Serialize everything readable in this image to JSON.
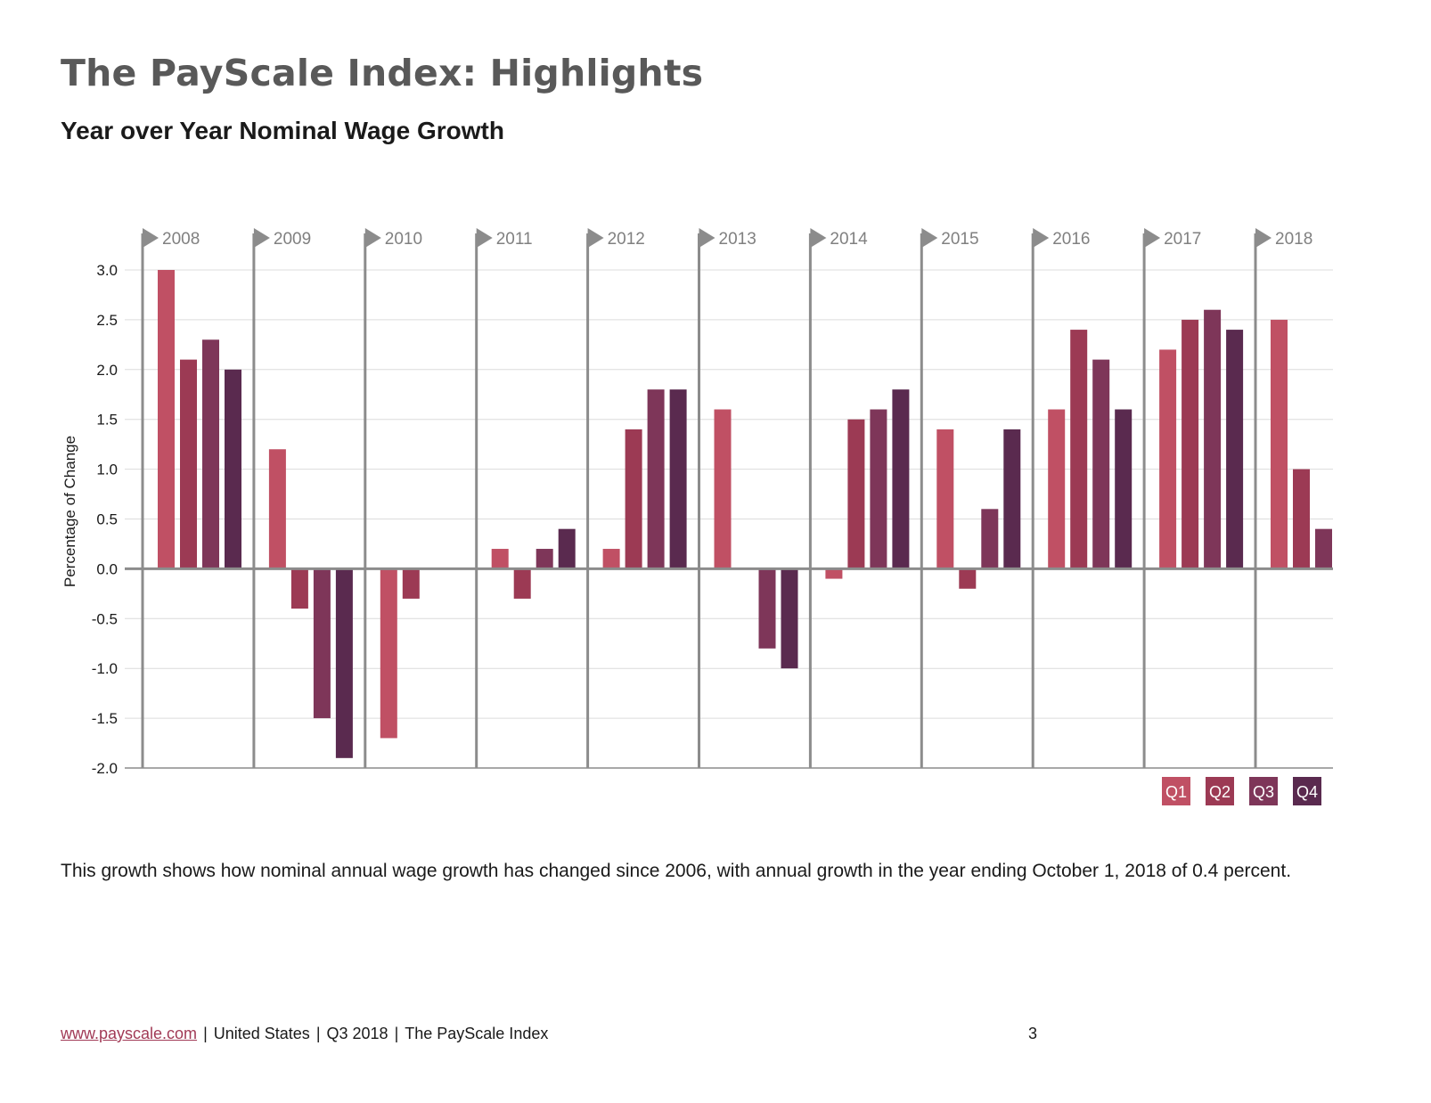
{
  "header": {
    "title": "The PayScale Index: Highlights",
    "subtitle": "Year over Year Nominal Wage Growth"
  },
  "description": "This growth shows how nominal annual wage growth has changed since 2006, with annual growth in the year ending October 1, 2018 of 0.4 percent.",
  "footer": {
    "link": "www.payscale.com",
    "region": "United States",
    "quarter": "Q3 2018",
    "publication": "The PayScale Index",
    "page_number": "3"
  },
  "chart_data": {
    "type": "bar",
    "title": "Year over Year Nominal Wage Growth",
    "ylabel": "Percentage of Change",
    "ylim": [
      -2.0,
      3.0
    ],
    "yticks": [
      "3.0",
      "2.5",
      "2.0",
      "1.5",
      "1.0",
      "0.5",
      "0.0",
      "-0.5",
      "-1.0",
      "-1.5",
      "-2.0"
    ],
    "ytick_values": [
      3.0,
      2.5,
      2.0,
      1.5,
      1.0,
      0.5,
      0.0,
      -0.5,
      -1.0,
      -1.5,
      -2.0
    ],
    "grid": true,
    "legend_position": "bottom-right",
    "categories": [
      "2008",
      "2009",
      "2010",
      "2011",
      "2012",
      "2013",
      "2014",
      "2015",
      "2016",
      "2017",
      "2018"
    ],
    "series": [
      {
        "name": "Q1",
        "color": "#c05064",
        "values": [
          3.0,
          1.2,
          -1.7,
          0.2,
          0.2,
          1.6,
          -0.1,
          1.4,
          1.6,
          2.2,
          2.5
        ]
      },
      {
        "name": "Q2",
        "color": "#9c3a54",
        "values": [
          2.1,
          -0.4,
          -0.3,
          -0.3,
          1.4,
          0.0,
          1.5,
          -0.2,
          2.4,
          2.5,
          1.0
        ]
      },
      {
        "name": "Q3",
        "color": "#7e3659",
        "values": [
          2.3,
          -1.5,
          0.0,
          0.2,
          1.8,
          -0.8,
          1.6,
          0.6,
          2.1,
          2.6,
          0.4
        ]
      },
      {
        "name": "Q4",
        "color": "#5a2a4f",
        "values": [
          2.0,
          -1.9,
          0.0,
          0.4,
          1.8,
          -1.0,
          1.8,
          1.4,
          1.6,
          2.4,
          null
        ]
      }
    ]
  }
}
